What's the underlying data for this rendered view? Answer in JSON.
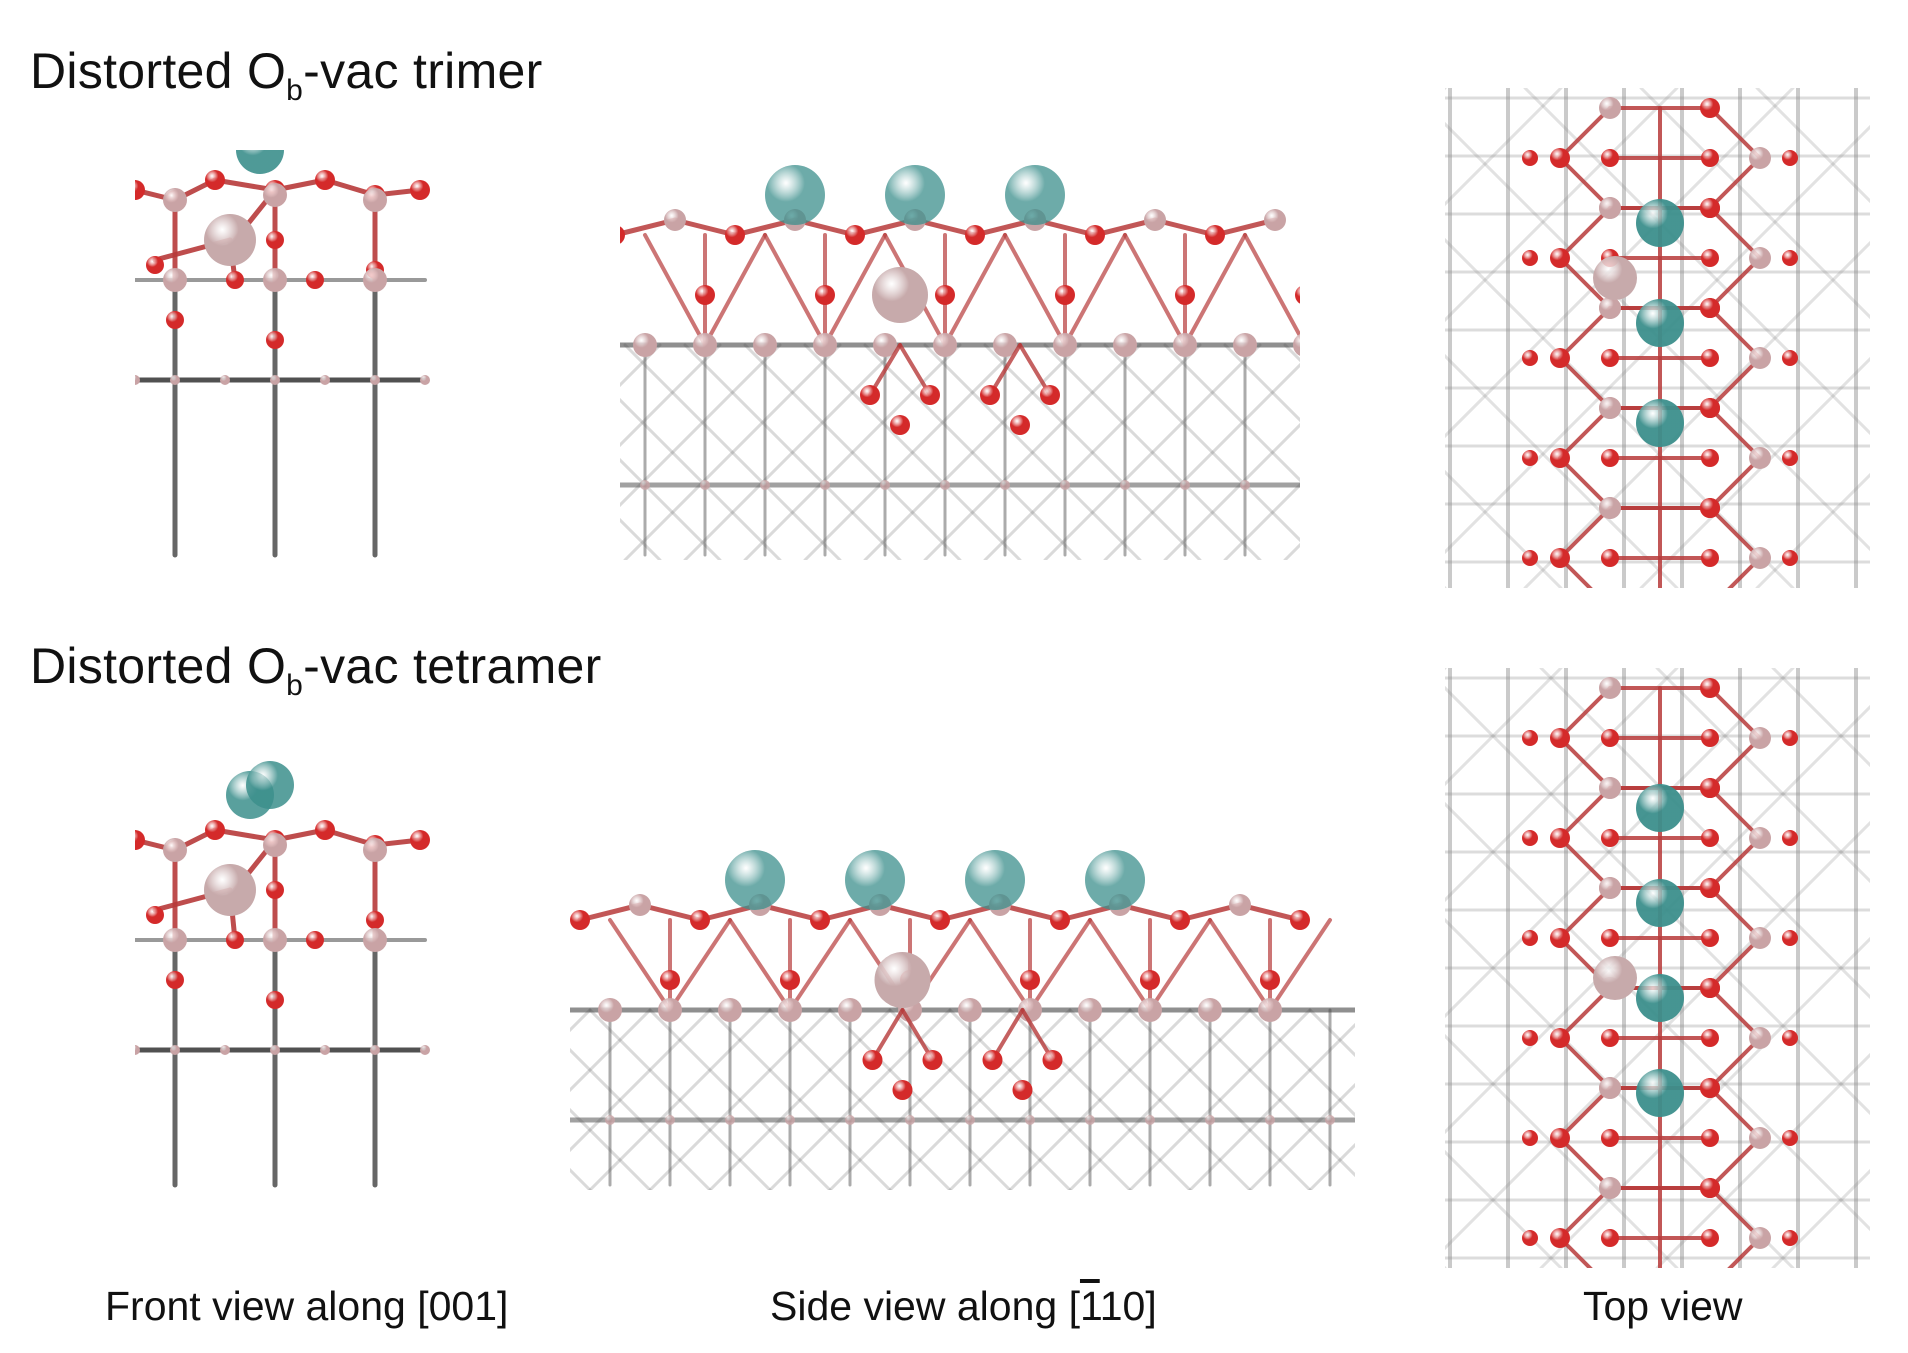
{
  "rows": [
    {
      "title_main": "Distorted O",
      "title_sub": "b",
      "title_rest": "-vac trimer",
      "dopant_count": 3
    },
    {
      "title_main": "Distorted O",
      "title_sub": "b",
      "title_rest": "-vac tetramer",
      "dopant_count": 4
    }
  ],
  "captions": {
    "front": "Front view along [001]",
    "side_prefix": "Side view along [",
    "side_bar": "1",
    "side_suffix": "10]",
    "top": "Top view"
  },
  "colors": {
    "oxygen": "#d42a2a",
    "oxygen_bond": "#b73a3a",
    "metal": "#c9a3a5",
    "metal_large": "#c7aaab",
    "dopant": "#3c8f8c",
    "bulk_lattice": "#333333",
    "top_lattice": "#8a8a8a"
  }
}
